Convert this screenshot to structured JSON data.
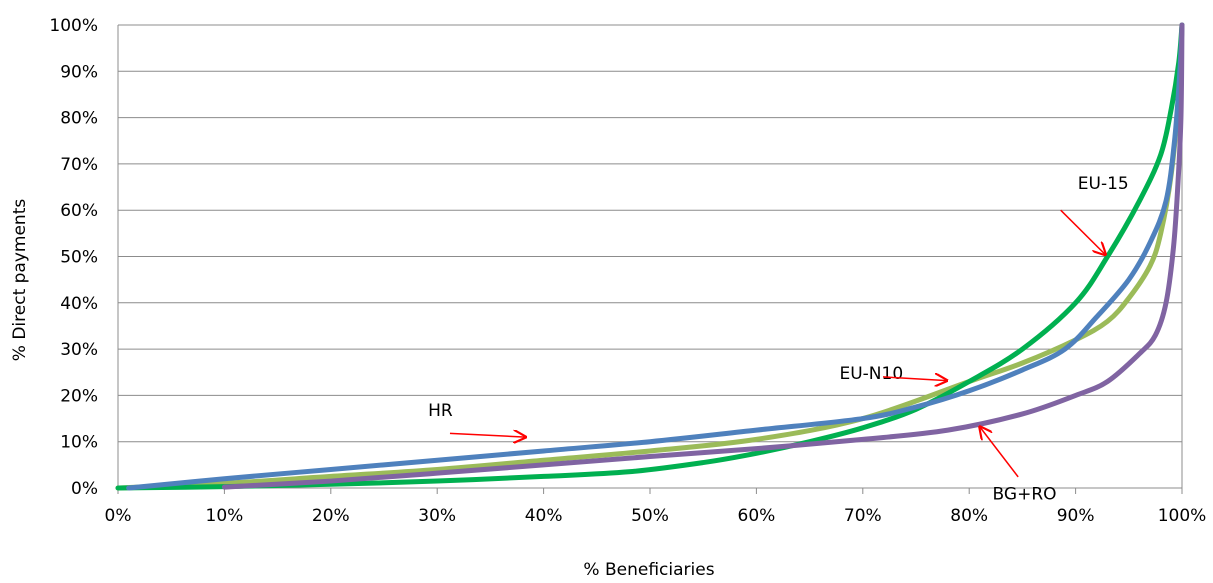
{
  "chart_data": {
    "type": "line",
    "title": "",
    "xlabel": "% Beneficiaries",
    "ylabel": "% Direct payments",
    "xlim": [
      0,
      100
    ],
    "ylim": [
      0,
      100
    ],
    "grid": true,
    "legend": "none",
    "x_ticks": [
      0,
      10,
      20,
      30,
      40,
      50,
      60,
      70,
      80,
      90,
      100
    ],
    "y_ticks": [
      0,
      10,
      20,
      30,
      40,
      50,
      60,
      70,
      80,
      90,
      100
    ],
    "x_tick_labels": [
      "0%",
      "10%",
      "20%",
      "30%",
      "40%",
      "50%",
      "60%",
      "70%",
      "80%",
      "90%",
      "100%"
    ],
    "y_tick_labels": [
      "0%",
      "10%",
      "20%",
      "30%",
      "40%",
      "50%",
      "60%",
      "70%",
      "80%",
      "90%",
      "100%"
    ],
    "series": [
      {
        "color": "#9bbb59",
        "points": [
          [
            0,
            0
          ],
          [
            10,
            1
          ],
          [
            20,
            2.5
          ],
          [
            30,
            4
          ],
          [
            40,
            6
          ],
          [
            50,
            8
          ],
          [
            60,
            10.5
          ],
          [
            70,
            15
          ],
          [
            80,
            23
          ],
          [
            85,
            27
          ],
          [
            90,
            32
          ],
          [
            93,
            36
          ],
          [
            95,
            41
          ],
          [
            97,
            48
          ],
          [
            98,
            55
          ],
          [
            99,
            68
          ],
          [
            99.7,
            85
          ],
          [
            100,
            100
          ]
        ]
      },
      {
        "color": "#00b050",
        "points": [
          [
            0,
            0
          ],
          [
            10,
            0.3
          ],
          [
            20,
            0.8
          ],
          [
            30,
            1.5
          ],
          [
            40,
            2.5
          ],
          [
            48,
            3.5
          ],
          [
            55,
            5.5
          ],
          [
            60,
            7.5
          ],
          [
            65,
            10
          ],
          [
            70,
            13
          ],
          [
            75,
            17
          ],
          [
            80,
            23
          ],
          [
            85,
            30
          ],
          [
            90,
            40
          ],
          [
            93,
            50
          ],
          [
            96,
            62
          ],
          [
            98,
            72
          ],
          [
            99,
            82
          ],
          [
            99.7,
            92
          ],
          [
            100,
            100
          ]
        ]
      },
      {
        "color": "#4f81bd",
        "points": [
          [
            1,
            0
          ],
          [
            10,
            2
          ],
          [
            20,
            4
          ],
          [
            30,
            6
          ],
          [
            40,
            8
          ],
          [
            50,
            10
          ],
          [
            60,
            12.5
          ],
          [
            70,
            15
          ],
          [
            75,
            17.5
          ],
          [
            80,
            21
          ],
          [
            85,
            25.5
          ],
          [
            89,
            30
          ],
          [
            92,
            37
          ],
          [
            95,
            45
          ],
          [
            97,
            53
          ],
          [
            98.5,
            62
          ],
          [
            99.3,
            75
          ],
          [
            99.8,
            90
          ],
          [
            100,
            100
          ]
        ]
      },
      {
        "color": "#8064a2",
        "points": [
          [
            10,
            0.2
          ],
          [
            20,
            1.5
          ],
          [
            30,
            3.2
          ],
          [
            40,
            5
          ],
          [
            50,
            6.8
          ],
          [
            60,
            8.5
          ],
          [
            70,
            10.5
          ],
          [
            78,
            12.5
          ],
          [
            85,
            16
          ],
          [
            90,
            20
          ],
          [
            93,
            23
          ],
          [
            96,
            29
          ],
          [
            97.5,
            33
          ],
          [
            98.5,
            40
          ],
          [
            99.2,
            52
          ],
          [
            99.6,
            65
          ],
          [
            99.9,
            80
          ],
          [
            100,
            100
          ]
        ]
      }
    ],
    "annotations": [
      {
        "text": "EU-15",
        "label_at": [
          92.6,
          64.6
        ],
        "arrow_from": [
          88.6,
          60
        ],
        "arrow_to": [
          92.8,
          50.4
        ],
        "color": "#ff0000"
      },
      {
        "text": "EU-N10",
        "label_at": [
          70.8,
          23.5
        ],
        "arrow_from": [
          71.9,
          24
        ],
        "arrow_to": [
          77.9,
          23.2
        ],
        "color": "#ff0000"
      },
      {
        "text": "HR",
        "label_at": [
          30.3,
          15.5
        ],
        "arrow_from": [
          31.2,
          11.8
        ],
        "arrow_to": [
          38.3,
          11
        ],
        "color": "#ff0000"
      },
      {
        "text": "BG+RO",
        "label_at": [
          85.2,
          -2.5
        ],
        "arrow_from": [
          84.6,
          2.4
        ],
        "arrow_to": [
          81,
          13.2
        ],
        "color": "#ff0000"
      }
    ]
  }
}
